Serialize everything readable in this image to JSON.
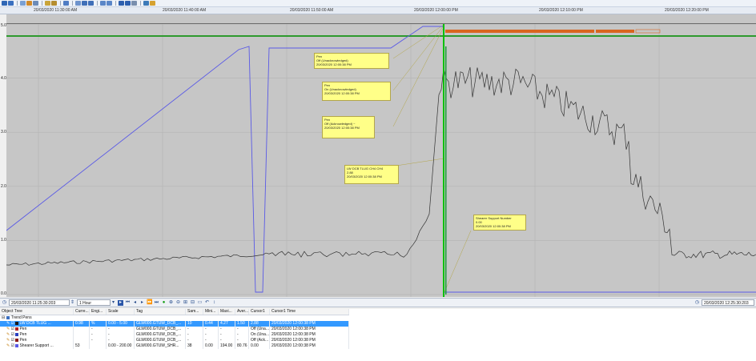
{
  "time_axis": {
    "labels": [
      "20/03/2020 11:30:00 AM",
      "20/03/2020 11:40:00 AM",
      "20/03/2020 11:50:00 AM",
      "20/03/2020 12:00:00 PM",
      "20/03/2020 12:10:00 PM",
      "20/03/2020 12:20:00 PM"
    ]
  },
  "chart": {
    "y_labels": [
      "5.00",
      "4.00",
      "3.00",
      "2.00",
      "1.00",
      "0.00"
    ],
    "colors": {
      "background": "#c6c6c6",
      "grid": "#b0b0b0",
      "pen_blue": "#5a5ae6",
      "pen_black": "#333333",
      "cursor": "#00c000",
      "top_line": "#2e9a2e",
      "events_band": "#d9661f"
    }
  },
  "annotations": [
    {
      "lines": [
        "Pen",
        "Off (Unacknowledged)",
        "20/03/2020 12:00:38 PM"
      ]
    },
    {
      "lines": [
        "Pen",
        "On (Unacknowledged)",
        "20/03/2020 12:00:38 PM"
      ]
    },
    {
      "lines": [
        "Pen",
        "Off (Acknowledged) ~",
        "20/03/2020 12:00:38 PM"
      ]
    },
    {
      "lines": [
        "LW DCB TLUG CH4 CH4",
        "2.88",
        "20/03/2020 12:00:38 PM"
      ]
    },
    {
      "lines": [
        "Shearer Support Number",
        "0.00",
        "20/03/2020 12:00:38 PM"
      ]
    }
  ],
  "navbar": {
    "start_time": "20/03/2020 11:25:30:203",
    "duration": "1 Hour",
    "end_time": "20/03/2020 12:25:30:203"
  },
  "table": {
    "headers": [
      "Object Tree",
      "Curre...",
      "Engi...",
      "Scale",
      "Tag",
      "Sam...",
      "Mini...",
      "Maxi...",
      "Aver...",
      "Cursor1",
      "Cursor1 Time"
    ],
    "group_label": "Trend Pens",
    "rows": [
      {
        "cells": [
          "LW DCB TLUG ...",
          "0.98",
          "%",
          "0.00 - 5.00",
          "GLW000.GTUW_DCB_...",
          "10",
          "0.44",
          "4.27",
          "1.50",
          "2.88",
          "20/03/2020 12:00:38 PM"
        ],
        "swatch": "#1a1a1a"
      },
      {
        "cells": [
          "Pen",
          "",
          "-",
          "-",
          "GLW000.GTUW_DCB_...",
          "-",
          "-",
          "-",
          "-",
          "Off (Una...",
          "20/03/2020 12:00:38 PM"
        ],
        "swatch": "#b22222"
      },
      {
        "cells": [
          "Pen",
          "",
          "-",
          "-",
          "GLW000.GTUW_DCB_...",
          "-",
          "-",
          "-",
          "-",
          "On (Una...",
          "20/03/2020 12:00:38 PM"
        ],
        "swatch": "#2a3fbf"
      },
      {
        "cells": [
          "Pen",
          "",
          "-",
          "-",
          "GLW000.GTUW_DCB_...",
          "-",
          "-",
          "-",
          "-",
          "Off (Ack...",
          "20/03/2020 12:00:38 PM"
        ],
        "swatch": "#8b1a1a"
      },
      {
        "cells": [
          "Shearer Support ...",
          "53",
          "",
          "0.00 - 200.00",
          "GLW000.GTUW_SHR...",
          "38",
          "0.00",
          "194.00",
          "80.76",
          "0.00",
          "20/03/2020 12:00:38 PM"
        ],
        "swatch": "#5a5ae6"
      }
    ]
  }
}
